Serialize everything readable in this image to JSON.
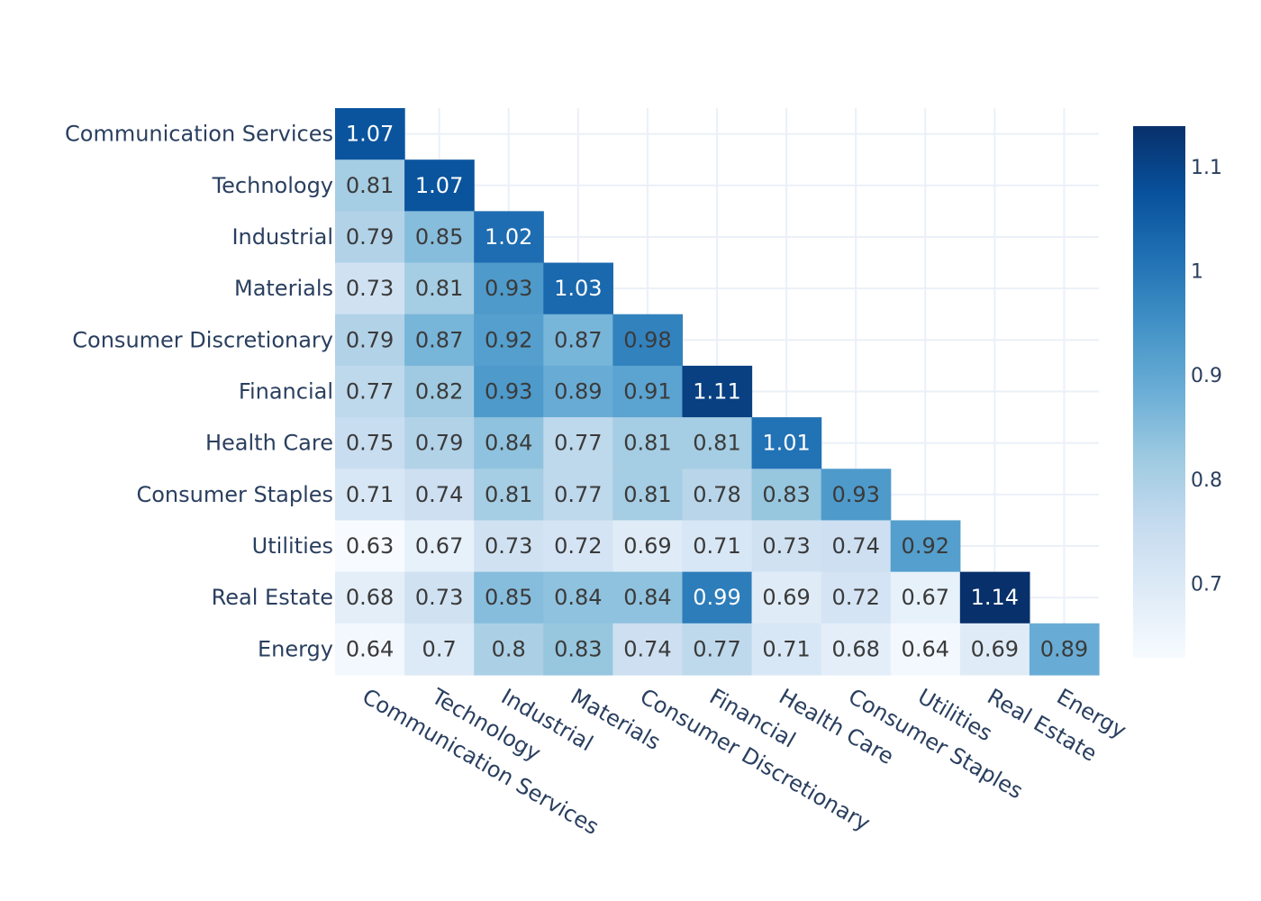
{
  "chart_data": {
    "type": "heatmap",
    "title": "",
    "xlabel": "",
    "ylabel": "",
    "categories": [
      "Communication Services",
      "Technology",
      "Industrial",
      "Materials",
      "Consumer Discretionary",
      "Financial",
      "Health Care",
      "Consumer Staples",
      "Utilities",
      "Real Estate",
      "Energy"
    ],
    "z": [
      [
        1.07,
        null,
        null,
        null,
        null,
        null,
        null,
        null,
        null,
        null,
        null
      ],
      [
        0.81,
        1.07,
        null,
        null,
        null,
        null,
        null,
        null,
        null,
        null,
        null
      ],
      [
        0.79,
        0.85,
        1.02,
        null,
        null,
        null,
        null,
        null,
        null,
        null,
        null
      ],
      [
        0.73,
        0.81,
        0.93,
        1.03,
        null,
        null,
        null,
        null,
        null,
        null,
        null
      ],
      [
        0.79,
        0.87,
        0.92,
        0.87,
        0.98,
        null,
        null,
        null,
        null,
        null,
        null
      ],
      [
        0.77,
        0.82,
        0.93,
        0.89,
        0.91,
        1.11,
        null,
        null,
        null,
        null,
        null
      ],
      [
        0.75,
        0.79,
        0.84,
        0.77,
        0.81,
        0.81,
        1.01,
        null,
        null,
        null,
        null
      ],
      [
        0.71,
        0.74,
        0.81,
        0.77,
        0.81,
        0.78,
        0.83,
        0.93,
        null,
        null,
        null
      ],
      [
        0.63,
        0.67,
        0.73,
        0.72,
        0.69,
        0.71,
        0.73,
        0.74,
        0.92,
        null,
        null
      ],
      [
        0.68,
        0.73,
        0.85,
        0.84,
        0.84,
        0.99,
        0.69,
        0.72,
        0.67,
        1.14,
        null
      ],
      [
        0.64,
        0.7,
        0.8,
        0.83,
        0.74,
        0.77,
        0.71,
        0.68,
        0.64,
        0.69,
        0.89
      ]
    ],
    "zrange": [
      0.63,
      1.14
    ],
    "colorscale": "Blues",
    "colorbar_ticks": [
      0.7,
      0.8,
      0.9,
      1,
      1.1
    ],
    "colorbar_tick_labels": [
      "0.7",
      "0.8",
      "0.9",
      "1",
      "1.1"
    ],
    "grid": true,
    "colorbar_position": "right"
  }
}
